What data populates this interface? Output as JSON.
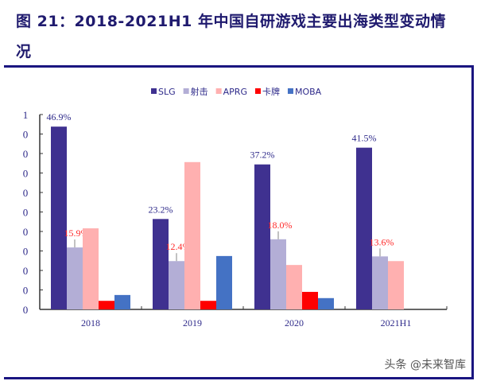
{
  "title": "图 21：2018-2021H1 年中国自研游戏主要出海类型变动情况",
  "watermark": "头条 @未来智库",
  "chart_data": {
    "type": "bar",
    "categories": [
      "2018",
      "2019",
      "2020",
      "2021H1"
    ],
    "series": [
      {
        "name": "SLG",
        "color": "#3f3190",
        "values": [
          46.9,
          23.2,
          37.2,
          41.5
        ],
        "labels": [
          "46.9%",
          "23.2%",
          "37.2%",
          "41.5%"
        ],
        "label_color": "#2e2a8a"
      },
      {
        "name": "射击",
        "color": "#b3aed6",
        "values": [
          15.9,
          12.4,
          18.0,
          13.6
        ],
        "labels": [
          "15.9%",
          "12.4%",
          "18.0%",
          "13.6%"
        ],
        "label_color": "#ff2a2a"
      },
      {
        "name": "APRG",
        "color": "#ffb0b0",
        "values": [
          20.8,
          37.8,
          11.4,
          12.4
        ]
      },
      {
        "name": "卡牌",
        "color": "#ff0000",
        "values": [
          2.2,
          2.2,
          4.5,
          0
        ]
      },
      {
        "name": "MOBA",
        "color": "#4472c4",
        "values": [
          3.7,
          13.7,
          2.9,
          0
        ]
      }
    ],
    "y_tick_labels": [
      "0",
      "0",
      "0",
      "0",
      "0",
      "0",
      "0",
      "0",
      "0",
      "0",
      "1"
    ],
    "ylim": [
      0,
      50
    ],
    "legend_position": "top",
    "grid": false
  }
}
